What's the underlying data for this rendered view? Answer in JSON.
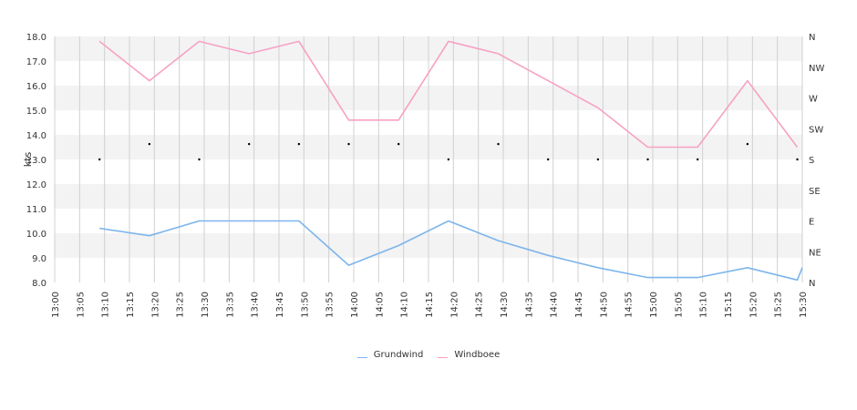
{
  "chart_data": {
    "type": "line",
    "title": "",
    "ylabel": "kts",
    "ylim": [
      8.0,
      18.0
    ],
    "y_ticks": [
      "8.0",
      "9.0",
      "10.0",
      "11.0",
      "12.0",
      "13.0",
      "14.0",
      "15.0",
      "16.0",
      "17.0",
      "18.0"
    ],
    "x_ticks": [
      "13:00",
      "13:05",
      "13:10",
      "13:15",
      "13:20",
      "13:25",
      "13:30",
      "13:35",
      "13:40",
      "13:45",
      "13:50",
      "13:55",
      "14:00",
      "14:05",
      "14:10",
      "14:15",
      "14:20",
      "14:25",
      "14:30",
      "14:35",
      "14:40",
      "14:45",
      "14:50",
      "14:55",
      "15:00",
      "15:05",
      "15:10",
      "15:15",
      "15:20",
      "15:25",
      "15:30"
    ],
    "xlim": [
      "13:00",
      "15:30"
    ],
    "right_axis_labels": [
      "N",
      "NE",
      "E",
      "SE",
      "S",
      "SW",
      "W",
      "NW",
      "N"
    ],
    "grid": true,
    "legend_position": "bottom",
    "series": [
      {
        "name": "Grundwind",
        "color": "#7cb5ec",
        "points": [
          [
            "13:09",
            10.2
          ],
          [
            "13:19",
            9.9
          ],
          [
            "13:29",
            10.5
          ],
          [
            "13:39",
            10.5
          ],
          [
            "13:49",
            10.5
          ],
          [
            "13:59",
            8.7
          ],
          [
            "14:09",
            9.5
          ],
          [
            "14:19",
            10.5
          ],
          [
            "14:29",
            9.7
          ],
          [
            "14:39",
            9.1
          ],
          [
            "14:49",
            8.6
          ],
          [
            "14:59",
            8.2
          ],
          [
            "15:09",
            8.2
          ],
          [
            "15:19",
            8.6
          ],
          [
            "15:29",
            8.1
          ],
          [
            "15:30",
            8.6
          ]
        ]
      },
      {
        "name": "Windboee",
        "color": "#f7a1c4",
        "points": [
          [
            "13:09",
            17.8
          ],
          [
            "13:19",
            16.2
          ],
          [
            "13:29",
            17.8
          ],
          [
            "13:39",
            17.3
          ],
          [
            "13:49",
            17.8
          ],
          [
            "13:59",
            14.6
          ],
          [
            "14:09",
            14.6
          ],
          [
            "14:19",
            17.8
          ],
          [
            "14:29",
            17.3
          ],
          [
            "14:39",
            16.2
          ],
          [
            "14:49",
            15.1
          ],
          [
            "14:59",
            13.5
          ],
          [
            "15:09",
            13.5
          ],
          [
            "15:19",
            16.2
          ],
          [
            "15:29",
            13.5
          ]
        ]
      }
    ],
    "direction_marks": [
      [
        "13:09",
        "S"
      ],
      [
        "13:19",
        "SSW"
      ],
      [
        "13:29",
        "S"
      ],
      [
        "13:39",
        "SSW"
      ],
      [
        "13:49",
        "SSW"
      ],
      [
        "13:59",
        "SSW"
      ],
      [
        "14:09",
        "SSW"
      ],
      [
        "14:19",
        "S"
      ],
      [
        "14:29",
        "SSW"
      ],
      [
        "14:39",
        "S"
      ],
      [
        "14:49",
        "S"
      ],
      [
        "14:59",
        "S"
      ],
      [
        "15:09",
        "S"
      ],
      [
        "15:19",
        "SSW"
      ],
      [
        "15:29",
        "S"
      ]
    ]
  }
}
